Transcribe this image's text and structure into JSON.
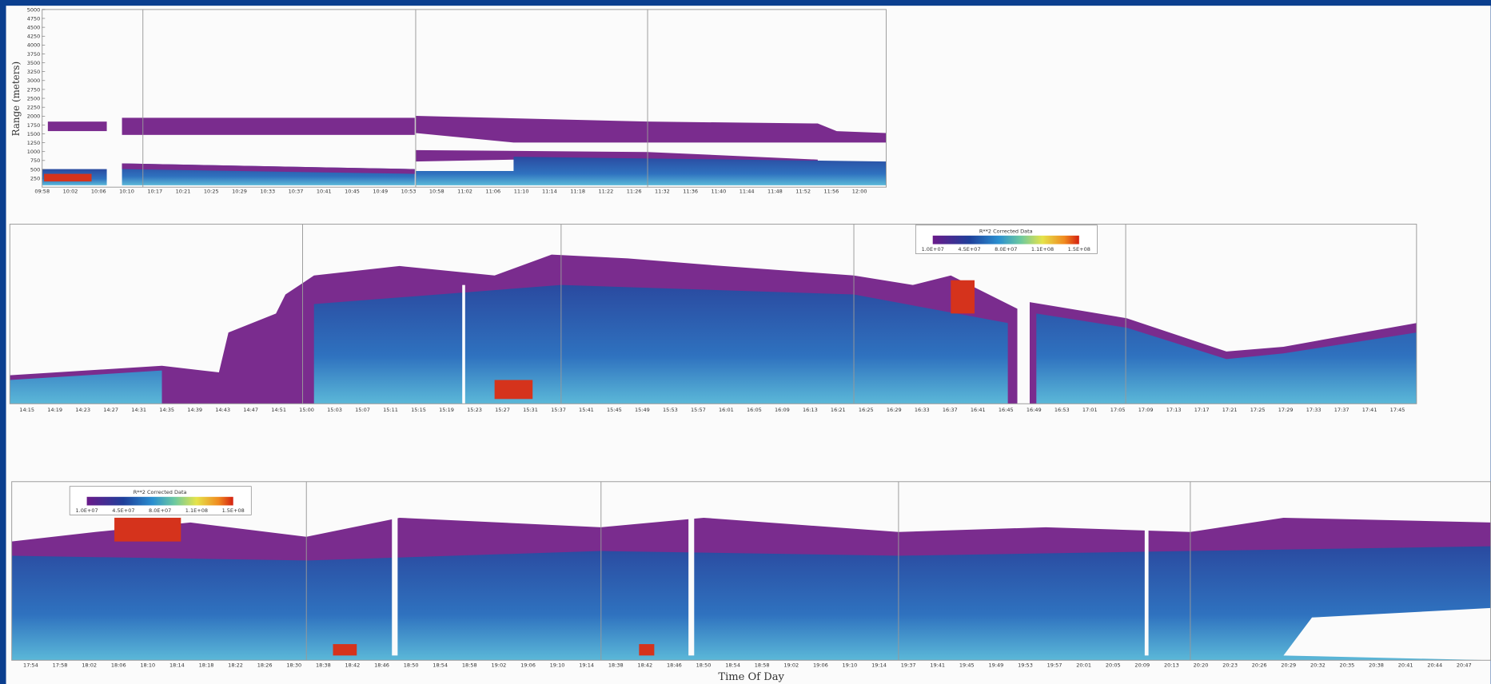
{
  "y_axis_label": "Range (meters)",
  "y_ticks": [
    "5000",
    "4750",
    "4500",
    "4250",
    "4000",
    "3750",
    "3500",
    "3250",
    "3000",
    "2750",
    "2500",
    "2250",
    "2000",
    "1750",
    "1500",
    "1250",
    "1000",
    "750",
    "500",
    "250"
  ],
  "rows": [
    {
      "time_labels": [
        "09:58",
        "10:02",
        "10:06",
        "10:10",
        "10:17",
        "10:21",
        "10:25",
        "10:29",
        "10:33",
        "10:37",
        "10:41",
        "10:45",
        "10:49",
        "10:53",
        "10:58",
        "11:02",
        "11:06",
        "11:10",
        "11:14",
        "11:18",
        "11:22",
        "11:26",
        "11:32",
        "11:36",
        "11:40",
        "11:44",
        "11:48",
        "11:52",
        "11:56",
        "12:00"
      ]
    },
    {
      "time_labels": [
        "14:15",
        "14:19",
        "14:23",
        "14:27",
        "14:31",
        "14:35",
        "14:39",
        "14:43",
        "14:47",
        "14:51",
        "15:00",
        "15:03",
        "15:07",
        "15:11",
        "15:15",
        "15:19",
        "15:23",
        "15:27",
        "15:31",
        "15:37",
        "15:41",
        "15:45",
        "15:49",
        "15:53",
        "15:57",
        "16:01",
        "16:05",
        "16:09",
        "16:13",
        "16:21",
        "16:25",
        "16:29",
        "16:33",
        "16:37",
        "16:41",
        "16:45",
        "16:49",
        "16:53",
        "17:01",
        "17:05",
        "17:09",
        "17:13",
        "17:17",
        "17:21",
        "17:25",
        "17:29",
        "17:33",
        "17:37",
        "17:41",
        "17:45"
      ]
    },
    {
      "time_labels": [
        "17:54",
        "17:58",
        "18:02",
        "18:06",
        "18:10",
        "18:14",
        "18:18",
        "18:22",
        "18:26",
        "18:30",
        "18:38",
        "18:42",
        "18:46",
        "18:50",
        "18:54",
        "18:58",
        "19:02",
        "19:06",
        "19:10",
        "19:14",
        "18:38",
        "18:42",
        "18:46",
        "18:50",
        "18:54",
        "18:58",
        "19:02",
        "19:06",
        "19:10",
        "19:14",
        "19:37",
        "19:41",
        "19:45",
        "19:49",
        "19:53",
        "19:57",
        "20:01",
        "20:05",
        "20:09",
        "20:13",
        "20:20",
        "20:23",
        "20:26",
        "20:29",
        "20:32",
        "20:35",
        "20:38",
        "20:41",
        "20:44",
        "20:47"
      ]
    }
  ],
  "legends": [
    {
      "title": "R**2 Corrected Data",
      "labels": [
        "1.0E+07",
        "4.5E+07",
        "8.0E+07",
        "1.1E+08",
        "1.5E+08"
      ]
    },
    {
      "title": "R**2 Corrected Data",
      "labels": [
        "1.0E+07",
        "4.5E+07",
        "8.0E+07",
        "1.1E+08",
        "1.5E+08"
      ]
    }
  ],
  "x_axis_label": "Time Of Day"
}
